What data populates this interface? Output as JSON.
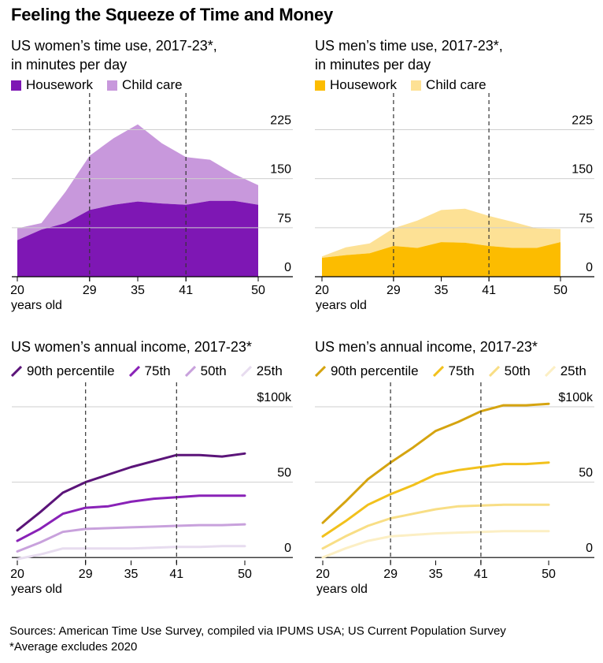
{
  "title": "Feeling the Squeeze of Time and Money",
  "footer": {
    "sources": "Sources: American Time Use Survey, compiled via IPUMS USA; US Current Population Survey",
    "note": "*Average excludes 2020"
  },
  "colors": {
    "women_housework": "#7e17b4",
    "women_childcare": "#c898dc",
    "men_housework": "#fcbc00",
    "men_childcare": "#fde195",
    "women_p90": "#5b1479",
    "women_p75": "#8922b7",
    "women_p50": "#c8a1dc",
    "women_p25": "#e7dcef",
    "men_p90": "#d5a410",
    "men_p75": "#f2c11c",
    "men_p50": "#f8de85",
    "men_p25": "#fcefc4"
  },
  "panels": {
    "women_time": {
      "subtitle_1": "US women’s time use, 2017-23*,",
      "subtitle_2": "in minutes per day",
      "legend": [
        "Housework",
        "Child care"
      ]
    },
    "men_time": {
      "subtitle_1": "US men’s time use, 2017-23*,",
      "subtitle_2": "in minutes per day",
      "legend": [
        "Housework",
        "Child care"
      ]
    },
    "women_income": {
      "subtitle": "US women’s annual income, 2017-23*",
      "legend": [
        "90th percentile",
        "75th",
        "50th",
        "25th"
      ]
    },
    "men_income": {
      "subtitle": "US men’s annual income, 2017-23*",
      "legend": [
        "90th percentile",
        "75th",
        "50th",
        "25th"
      ]
    }
  },
  "chart_data": [
    {
      "id": "women_time",
      "type": "area",
      "stacked": true,
      "x": [
        20,
        23,
        26,
        29,
        32,
        35,
        38,
        41,
        44,
        47,
        50
      ],
      "series": [
        {
          "name": "Housework",
          "values": [
            56,
            72,
            82,
            102,
            110,
            115,
            112,
            110,
            116,
            116,
            110
          ]
        },
        {
          "name": "Child care",
          "values": [
            18,
            10,
            48,
            83,
            102,
            118,
            92,
            73,
            63,
            41,
            30
          ]
        }
      ],
      "xlim": [
        20,
        50
      ],
      "ylim": [
        0,
        240
      ],
      "yticks": [
        0,
        75,
        150,
        225
      ],
      "ytick_labels": [
        "0",
        "75",
        "150",
        "225"
      ],
      "xticks": [
        20,
        29,
        35,
        41,
        50
      ],
      "xtick_labels": [
        "20",
        "29",
        "35",
        "41",
        "50"
      ],
      "xlabel": "years old",
      "vlines": [
        29,
        41
      ]
    },
    {
      "id": "men_time",
      "type": "area",
      "stacked": true,
      "x": [
        20,
        23,
        26,
        29,
        32,
        35,
        38,
        41,
        44,
        47,
        50
      ],
      "series": [
        {
          "name": "Housework",
          "values": [
            29,
            33,
            36,
            47,
            44,
            53,
            52,
            47,
            44,
            44,
            53
          ]
        },
        {
          "name": "Child care",
          "values": [
            2,
            12,
            15,
            27,
            42,
            49,
            52,
            46,
            40,
            30,
            20
          ]
        }
      ],
      "xlim": [
        20,
        50
      ],
      "ylim": [
        0,
        240
      ],
      "yticks": [
        0,
        75,
        150,
        225
      ],
      "ytick_labels": [
        "0",
        "75",
        "150",
        "225"
      ],
      "xticks": [
        20,
        29,
        35,
        41,
        50
      ],
      "xtick_labels": [
        "20",
        "29",
        "35",
        "41",
        "50"
      ],
      "xlabel": "years old",
      "vlines": [
        29,
        41
      ]
    },
    {
      "id": "women_income",
      "type": "line",
      "unit": "$k",
      "x": [
        20,
        23,
        26,
        29,
        32,
        35,
        38,
        41,
        44,
        47,
        50
      ],
      "series": [
        {
          "name": "90th percentile",
          "values": [
            18,
            30,
            43,
            50,
            55,
            60,
            64,
            68,
            68,
            67,
            69
          ]
        },
        {
          "name": "75th",
          "values": [
            11,
            19,
            29,
            33,
            34,
            37,
            39,
            40,
            41,
            41,
            41
          ]
        },
        {
          "name": "50th",
          "values": [
            4,
            10,
            17,
            19,
            19.5,
            20,
            20.5,
            21,
            21.5,
            21.5,
            22
          ]
        },
        {
          "name": "25th",
          "values": [
            -1,
            2,
            6,
            6,
            6,
            6,
            6.5,
            7,
            7,
            7.5,
            7.5
          ]
        }
      ],
      "xlim": [
        20,
        50
      ],
      "ylim": [
        -2,
        100
      ],
      "yticks": [
        0,
        50,
        100
      ],
      "ytick_labels": [
        "0",
        "50",
        "$100k"
      ],
      "xticks": [
        20,
        29,
        35,
        41,
        50
      ],
      "xtick_labels": [
        "20",
        "29",
        "35",
        "41",
        "50"
      ],
      "xlabel": "years old",
      "vlines": [
        29,
        41
      ]
    },
    {
      "id": "men_income",
      "type": "line",
      "unit": "$k",
      "x": [
        20,
        23,
        26,
        29,
        32,
        35,
        38,
        41,
        44,
        47,
        50
      ],
      "series": [
        {
          "name": "90th percentile",
          "values": [
            23,
            37,
            52,
            63,
            73,
            84,
            90,
            97,
            101,
            101,
            102
          ]
        },
        {
          "name": "75th",
          "values": [
            14,
            24,
            35,
            42,
            48,
            55,
            58,
            60,
            62,
            62,
            63
          ]
        },
        {
          "name": "50th",
          "values": [
            6,
            14,
            21,
            26,
            29,
            32,
            34,
            34.5,
            35,
            35,
            35
          ]
        },
        {
          "name": "25th",
          "values": [
            0,
            6,
            11,
            14,
            15,
            16,
            16.5,
            17,
            17.5,
            17.5,
            17.5
          ]
        }
      ],
      "xlim": [
        20,
        50
      ],
      "ylim": [
        -2,
        100
      ],
      "yticks": [
        0,
        50,
        100
      ],
      "ytick_labels": [
        "0",
        "50",
        "$100k"
      ],
      "xticks": [
        20,
        29,
        35,
        41,
        50
      ],
      "xtick_labels": [
        "20",
        "29",
        "35",
        "41",
        "50"
      ],
      "xlabel": "years old",
      "vlines": [
        29,
        41
      ]
    }
  ]
}
